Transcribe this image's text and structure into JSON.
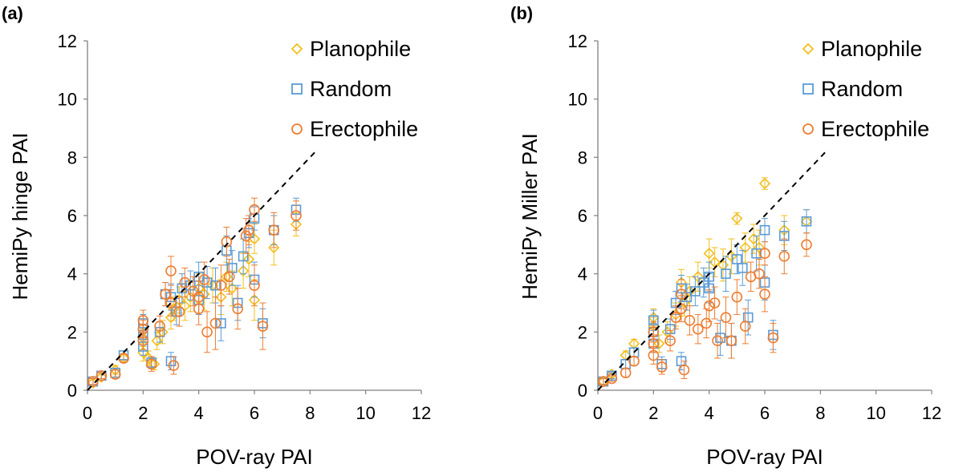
{
  "figure": {
    "panels": [
      {
        "label": "(a)",
        "ylabel": "HemiPy hinge PAI",
        "xlabel": "POV-ray PAI"
      },
      {
        "label": "(b)",
        "ylabel": "HemiPy Miller PAI",
        "xlabel": "POV-ray PAI"
      }
    ],
    "legend": [
      {
        "label": "Planophile",
        "marker": "diamond",
        "color": "#F2BE1C"
      },
      {
        "label": "Random",
        "marker": "square",
        "color": "#5B9BD5"
      },
      {
        "label": "Erectophile",
        "marker": "circle",
        "color": "#ED7D31"
      }
    ],
    "colors": {
      "planophile": "#F2BE1C",
      "random": "#5B9BD5",
      "erectophile": "#ED7D31",
      "reference_line": "#000000"
    }
  },
  "chart_data": [
    {
      "type": "scatter",
      "title": "(a)",
      "xlabel": "POV-ray PAI",
      "ylabel": "HemiPy hinge PAI",
      "xlim": [
        0,
        12
      ],
      "ylim": [
        0,
        12
      ],
      "xticks": [
        0,
        2,
        4,
        6,
        8,
        10,
        12
      ],
      "yticks": [
        0,
        2,
        4,
        6,
        8,
        10,
        12
      ],
      "reference_line": {
        "style": "dashed",
        "from": [
          0,
          0
        ],
        "to": [
          8.2,
          8.2
        ]
      },
      "legend_position": "top-right",
      "series": [
        {
          "name": "Planophile",
          "marker": "diamond",
          "color": "#F2BE1C",
          "points": [
            [
              0.2,
              0.25,
              0.1
            ],
            [
              0.5,
              0.45,
              0.1
            ],
            [
              1.0,
              0.7,
              0.15
            ],
            [
              1.3,
              1.1,
              0.15
            ],
            [
              2.0,
              1.3,
              0.3
            ],
            [
              2.0,
              1.8,
              0.3
            ],
            [
              2.2,
              1.1,
              0.25
            ],
            [
              2.4,
              0.9,
              0.2
            ],
            [
              2.5,
              1.7,
              0.3
            ],
            [
              2.7,
              2.0,
              0.4
            ],
            [
              3.0,
              2.5,
              0.4
            ],
            [
              3.1,
              2.8,
              0.4
            ],
            [
              3.3,
              3.1,
              0.45
            ],
            [
              3.5,
              2.9,
              0.5
            ],
            [
              3.7,
              3.2,
              0.5
            ],
            [
              4.0,
              3.5,
              0.5
            ],
            [
              4.2,
              3.3,
              0.55
            ],
            [
              4.5,
              3.6,
              0.6
            ],
            [
              4.8,
              3.2,
              0.6
            ],
            [
              5.0,
              3.9,
              0.5
            ],
            [
              5.2,
              3.5,
              0.6
            ],
            [
              5.6,
              4.1,
              0.6
            ],
            [
              5.8,
              4.5,
              0.6
            ],
            [
              6.0,
              3.1,
              0.7
            ],
            [
              6.0,
              5.2,
              0.5
            ],
            [
              6.7,
              4.9,
              0.6
            ],
            [
              7.5,
              5.7,
              0.4
            ]
          ]
        },
        {
          "name": "Random",
          "marker": "square",
          "color": "#5B9BD5",
          "points": [
            [
              0.2,
              0.3,
              0.1
            ],
            [
              0.5,
              0.5,
              0.1
            ],
            [
              1.0,
              0.6,
              0.15
            ],
            [
              1.3,
              1.2,
              0.15
            ],
            [
              2.0,
              1.5,
              0.3
            ],
            [
              2.0,
              2.3,
              0.3
            ],
            [
              2.0,
              1.9,
              0.35
            ],
            [
              2.3,
              0.95,
              0.2
            ],
            [
              2.6,
              2.0,
              0.35
            ],
            [
              2.8,
              3.3,
              0.4
            ],
            [
              3.0,
              3.2,
              0.45
            ],
            [
              3.0,
              1.0,
              0.3
            ],
            [
              3.2,
              2.7,
              0.45
            ],
            [
              3.4,
              3.5,
              0.5
            ],
            [
              3.7,
              3.6,
              0.5
            ],
            [
              4.0,
              3.9,
              0.5
            ],
            [
              4.0,
              3.1,
              0.5
            ],
            [
              4.3,
              3.7,
              0.55
            ],
            [
              4.6,
              3.6,
              0.6
            ],
            [
              4.8,
              2.3,
              0.6
            ],
            [
              5.0,
              4.8,
              0.5
            ],
            [
              5.2,
              4.2,
              0.6
            ],
            [
              5.4,
              3.0,
              0.6
            ],
            [
              5.6,
              4.6,
              0.6
            ],
            [
              5.8,
              5.4,
              0.5
            ],
            [
              6.0,
              5.9,
              0.4
            ],
            [
              6.0,
              3.8,
              0.6
            ],
            [
              6.3,
              2.3,
              0.5
            ],
            [
              6.7,
              5.5,
              0.5
            ],
            [
              7.5,
              6.2,
              0.4
            ]
          ]
        },
        {
          "name": "Erectophile",
          "marker": "circle",
          "color": "#ED7D31",
          "points": [
            [
              0.2,
              0.3,
              0.1
            ],
            [
              0.5,
              0.5,
              0.1
            ],
            [
              1.0,
              0.55,
              0.15
            ],
            [
              1.3,
              1.1,
              0.15
            ],
            [
              2.0,
              1.7,
              0.3
            ],
            [
              2.0,
              2.1,
              0.3
            ],
            [
              2.0,
              2.4,
              0.35
            ],
            [
              2.3,
              0.9,
              0.25
            ],
            [
              2.6,
              2.2,
              0.35
            ],
            [
              2.8,
              3.3,
              0.4
            ],
            [
              3.0,
              4.1,
              0.5
            ],
            [
              3.0,
              3.0,
              0.45
            ],
            [
              3.1,
              0.85,
              0.3
            ],
            [
              3.3,
              2.7,
              0.5
            ],
            [
              3.5,
              3.7,
              0.5
            ],
            [
              3.8,
              3.4,
              0.5
            ],
            [
              4.0,
              3.2,
              0.55
            ],
            [
              4.0,
              2.8,
              0.55
            ],
            [
              4.2,
              3.8,
              0.6
            ],
            [
              4.3,
              2.0,
              0.7
            ],
            [
              4.6,
              2.3,
              0.9
            ],
            [
              4.8,
              3.6,
              0.7
            ],
            [
              5.0,
              5.1,
              0.5
            ],
            [
              5.1,
              3.9,
              0.6
            ],
            [
              5.4,
              2.8,
              0.7
            ],
            [
              5.7,
              5.3,
              0.6
            ],
            [
              5.8,
              5.5,
              0.5
            ],
            [
              6.0,
              6.2,
              0.4
            ],
            [
              6.0,
              3.6,
              0.7
            ],
            [
              6.3,
              2.2,
              0.8
            ],
            [
              6.7,
              5.5,
              0.6
            ],
            [
              7.5,
              6.0,
              0.5
            ]
          ]
        }
      ]
    },
    {
      "type": "scatter",
      "title": "(b)",
      "xlabel": "POV-ray PAI",
      "ylabel": "HemiPy Miller PAI",
      "xlim": [
        0,
        12
      ],
      "ylim": [
        0,
        12
      ],
      "xticks": [
        0,
        2,
        4,
        6,
        8,
        10,
        12
      ],
      "yticks": [
        0,
        2,
        4,
        6,
        8,
        10,
        12
      ],
      "reference_line": {
        "style": "dashed",
        "from": [
          0,
          0
        ],
        "to": [
          8.2,
          8.2
        ]
      },
      "legend_position": "top-right",
      "series": [
        {
          "name": "Planophile",
          "marker": "diamond",
          "color": "#F2BE1C",
          "points": [
            [
              0.2,
              0.3,
              0.1
            ],
            [
              0.5,
              0.55,
              0.1
            ],
            [
              1.0,
              1.2,
              0.15
            ],
            [
              1.3,
              1.6,
              0.15
            ],
            [
              2.0,
              2.2,
              0.3
            ],
            [
              2.0,
              2.5,
              0.3
            ],
            [
              2.2,
              1.6,
              0.3
            ],
            [
              2.5,
              2.0,
              0.35
            ],
            [
              2.8,
              2.6,
              0.4
            ],
            [
              3.0,
              3.7,
              0.45
            ],
            [
              3.1,
              3.0,
              0.45
            ],
            [
              3.3,
              3.4,
              0.5
            ],
            [
              3.6,
              3.9,
              0.5
            ],
            [
              4.0,
              4.7,
              0.5
            ],
            [
              4.2,
              4.4,
              0.5
            ],
            [
              4.5,
              4.3,
              0.55
            ],
            [
              4.8,
              4.6,
              0.6
            ],
            [
              5.0,
              5.9,
              0.2
            ],
            [
              5.3,
              4.9,
              0.5
            ],
            [
              5.6,
              5.2,
              0.5
            ],
            [
              5.8,
              4.9,
              0.6
            ],
            [
              6.0,
              7.1,
              0.2
            ],
            [
              6.7,
              5.5,
              0.5
            ],
            [
              7.5,
              5.8,
              0.4
            ]
          ]
        },
        {
          "name": "Random",
          "marker": "square",
          "color": "#5B9BD5",
          "points": [
            [
              0.2,
              0.3,
              0.1
            ],
            [
              0.5,
              0.5,
              0.1
            ],
            [
              1.0,
              0.9,
              0.15
            ],
            [
              1.3,
              1.3,
              0.15
            ],
            [
              2.0,
              1.6,
              0.3
            ],
            [
              2.0,
              2.0,
              0.3
            ],
            [
              2.0,
              2.4,
              0.35
            ],
            [
              2.3,
              0.9,
              0.25
            ],
            [
              2.6,
              2.1,
              0.35
            ],
            [
              2.8,
              3.0,
              0.4
            ],
            [
              3.0,
              3.5,
              0.45
            ],
            [
              3.0,
              1.0,
              0.3
            ],
            [
              3.2,
              3.2,
              0.45
            ],
            [
              3.5,
              3.4,
              0.5
            ],
            [
              3.8,
              3.7,
              0.5
            ],
            [
              4.0,
              3.5,
              0.5
            ],
            [
              4.0,
              3.9,
              0.5
            ],
            [
              4.4,
              1.8,
              0.6
            ],
            [
              4.6,
              4.0,
              0.6
            ],
            [
              4.8,
              1.7,
              0.6
            ],
            [
              5.0,
              4.5,
              0.5
            ],
            [
              5.2,
              4.2,
              0.6
            ],
            [
              5.4,
              2.5,
              0.6
            ],
            [
              5.7,
              4.7,
              0.6
            ],
            [
              6.0,
              5.5,
              0.4
            ],
            [
              6.0,
              3.7,
              0.6
            ],
            [
              6.3,
              1.9,
              0.5
            ],
            [
              6.7,
              5.3,
              0.5
            ],
            [
              7.5,
              5.8,
              0.4
            ]
          ]
        },
        {
          "name": "Erectophile",
          "marker": "circle",
          "color": "#ED7D31",
          "points": [
            [
              0.2,
              0.3,
              0.1
            ],
            [
              0.5,
              0.4,
              0.1
            ],
            [
              1.0,
              0.6,
              0.15
            ],
            [
              1.3,
              1.0,
              0.15
            ],
            [
              2.0,
              1.2,
              0.3
            ],
            [
              2.0,
              1.6,
              0.3
            ],
            [
              2.0,
              2.0,
              0.35
            ],
            [
              2.3,
              0.8,
              0.25
            ],
            [
              2.6,
              1.7,
              0.35
            ],
            [
              2.8,
              2.5,
              0.4
            ],
            [
              3.0,
              2.8,
              0.45
            ],
            [
              3.0,
              3.3,
              0.5
            ],
            [
              3.1,
              0.7,
              0.3
            ],
            [
              3.3,
              2.4,
              0.5
            ],
            [
              3.6,
              2.1,
              0.5
            ],
            [
              3.9,
              2.3,
              0.5
            ],
            [
              4.0,
              2.9,
              0.55
            ],
            [
              4.2,
              3.0,
              0.55
            ],
            [
              4.3,
              1.7,
              0.6
            ],
            [
              4.6,
              2.5,
              0.7
            ],
            [
              4.8,
              1.7,
              0.6
            ],
            [
              5.0,
              3.2,
              0.6
            ],
            [
              5.3,
              2.2,
              0.6
            ],
            [
              5.5,
              3.9,
              0.5
            ],
            [
              5.8,
              4.0,
              0.5
            ],
            [
              6.0,
              4.7,
              0.4
            ],
            [
              6.0,
              3.3,
              0.6
            ],
            [
              6.3,
              1.8,
              0.5
            ],
            [
              6.7,
              4.6,
              0.6
            ],
            [
              7.5,
              5.0,
              0.4
            ]
          ]
        }
      ]
    }
  ]
}
